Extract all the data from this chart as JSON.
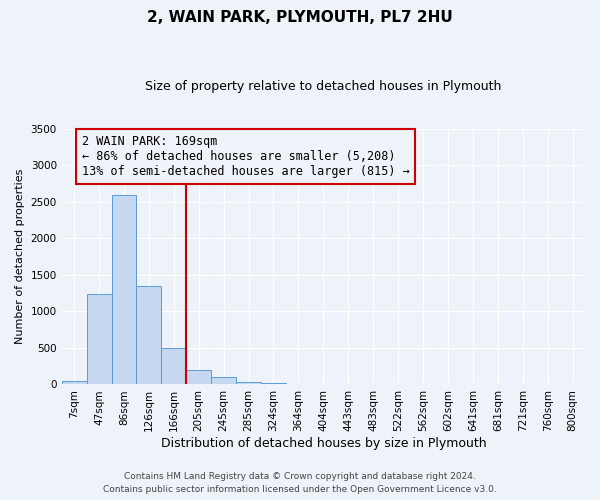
{
  "title": "2, WAIN PARK, PLYMOUTH, PL7 2HU",
  "subtitle": "Size of property relative to detached houses in Plymouth",
  "xlabel": "Distribution of detached houses by size in Plymouth",
  "ylabel": "Number of detached properties",
  "bar_labels": [
    "7sqm",
    "47sqm",
    "86sqm",
    "126sqm",
    "166sqm",
    "205sqm",
    "245sqm",
    "285sqm",
    "324sqm",
    "364sqm",
    "404sqm",
    "443sqm",
    "483sqm",
    "522sqm",
    "562sqm",
    "602sqm",
    "641sqm",
    "681sqm",
    "721sqm",
    "760sqm",
    "800sqm"
  ],
  "bar_values": [
    50,
    1240,
    2590,
    1350,
    500,
    200,
    105,
    40,
    20,
    10,
    5,
    3,
    2,
    0,
    0,
    0,
    0,
    0,
    0,
    0,
    0
  ],
  "bar_color": "#c5d8f0",
  "bar_edge_color": "#5b9bd5",
  "vline_color": "#cc0000",
  "annotation_title": "2 WAIN PARK: 169sqm",
  "annotation_line1": "← 86% of detached houses are smaller (5,208)",
  "annotation_line2": "13% of semi-detached houses are larger (815) →",
  "annotation_box_color": "#cc0000",
  "ylim": [
    0,
    3500
  ],
  "yticks": [
    0,
    500,
    1000,
    1500,
    2000,
    2500,
    3000,
    3500
  ],
  "footer1": "Contains HM Land Registry data © Crown copyright and database right 2024.",
  "footer2": "Contains public sector information licensed under the Open Government Licence v3.0.",
  "background_color": "#eef2f9",
  "grid_color": "#ffffff",
  "title_fontsize": 11,
  "subtitle_fontsize": 9,
  "xlabel_fontsize": 9,
  "ylabel_fontsize": 8,
  "tick_fontsize": 7.5,
  "annotation_fontsize": 8.5,
  "footer_fontsize": 6.5
}
